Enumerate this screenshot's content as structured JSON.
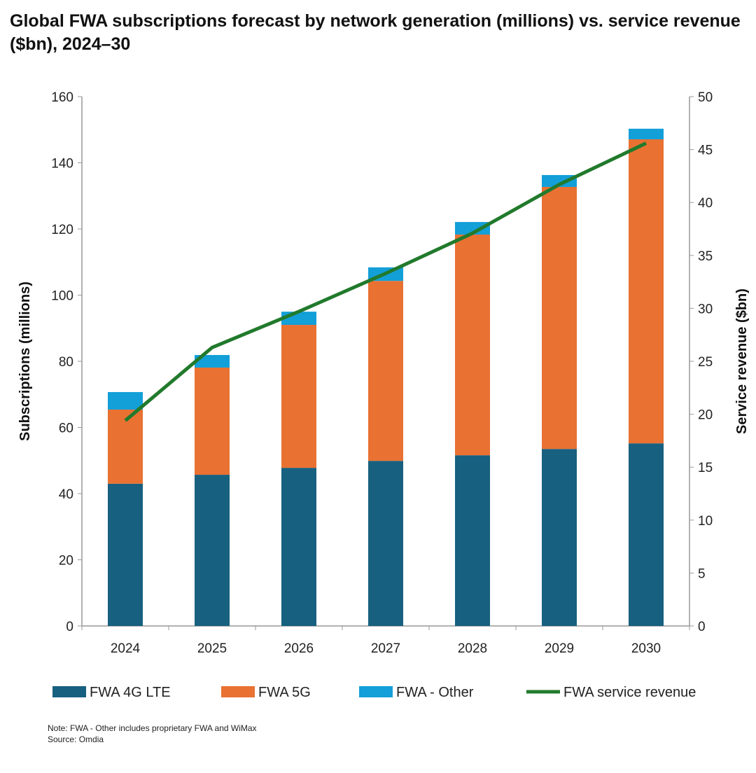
{
  "chart_data": {
    "type": "bar",
    "stacked": true,
    "title": "Global FWA subscriptions forecast by network generation (millions) vs. service revenue ($bn), 2024–30",
    "categories": [
      "2024",
      "2025",
      "2026",
      "2027",
      "2028",
      "2029",
      "2030"
    ],
    "series": [
      {
        "name": "FWA 4G LTE",
        "type": "bar",
        "axis": "left",
        "color": "#17607f",
        "values": [
          43.0,
          45.7,
          47.8,
          49.9,
          51.6,
          53.5,
          55.2
        ]
      },
      {
        "name": "FWA 5G",
        "type": "bar",
        "axis": "left",
        "color": "#e97132",
        "values": [
          22.4,
          32.4,
          43.2,
          54.4,
          66.7,
          79.2,
          91.9
        ]
      },
      {
        "name": "FWA - Other",
        "type": "bar",
        "axis": "left",
        "color": "#139fd8",
        "values": [
          5.3,
          3.8,
          4.0,
          4.1,
          3.8,
          3.6,
          3.2
        ]
      },
      {
        "name": "FWA service revenue",
        "type": "line",
        "axis": "right",
        "color": "#217a2c",
        "values": [
          19.4,
          26.3,
          29.7,
          33.3,
          37.1,
          41.7,
          45.6
        ]
      }
    ],
    "ylabel": "Subscriptions (millions)",
    "y2label": "Service revenue ($bn)",
    "ylim": [
      0,
      160
    ],
    "y2lim": [
      0,
      50
    ],
    "yticks": [
      0,
      20,
      40,
      60,
      80,
      100,
      120,
      140,
      160
    ],
    "y2ticks": [
      0,
      5,
      10,
      15,
      20,
      25,
      30,
      35,
      40,
      45,
      50
    ],
    "grid": false,
    "legend": "bottom"
  },
  "notes": {
    "note": "Note: FWA - Other includes proprietary FWA and WiMax",
    "source": "Source: Omdia"
  }
}
